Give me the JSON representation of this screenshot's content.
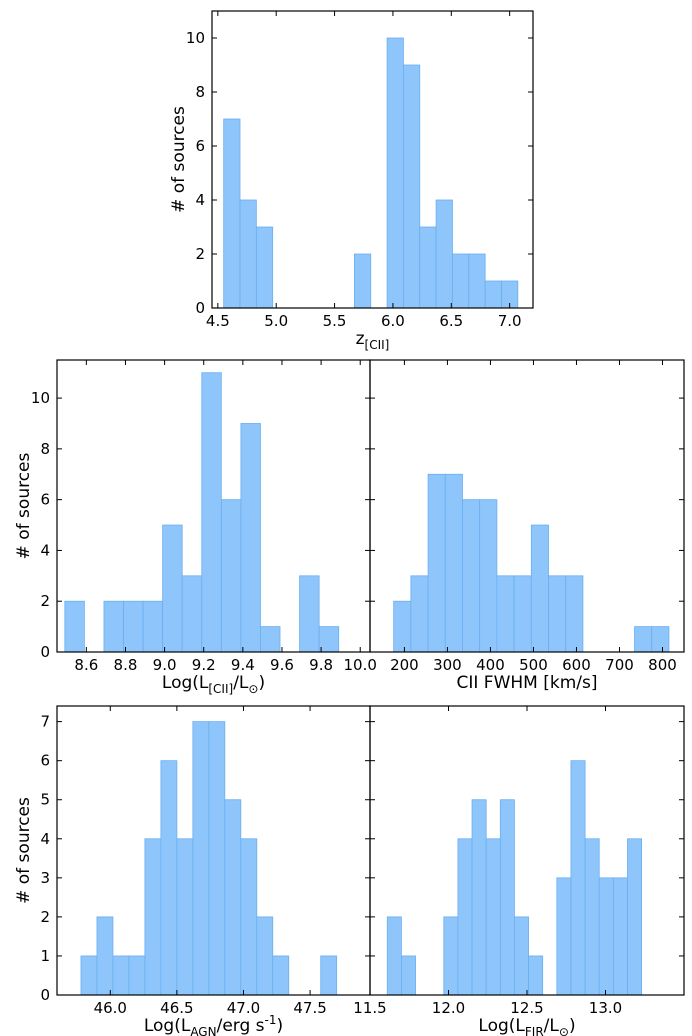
{
  "chart_data": [
    {
      "id": "redshift",
      "type": "bar",
      "title": "",
      "xlabel": "z_[CII]",
      "ylabel": "# of sources",
      "xlim": [
        4.45,
        7.2
      ],
      "ylim": [
        0,
        11
      ],
      "xticks": [
        4.5,
        5.0,
        5.5,
        6.0,
        6.5,
        7.0
      ],
      "xtick_labels": [
        "4.5",
        "5.0",
        "5.5",
        "6.0",
        "6.5",
        "7.0"
      ],
      "yticks": [
        0,
        2,
        4,
        6,
        8,
        10
      ],
      "ytick_labels": [
        "0",
        "2",
        "4",
        "6",
        "8",
        "10"
      ],
      "bin_edges": [
        4.55,
        4.69,
        4.83,
        4.97,
        5.11,
        5.25,
        5.39,
        5.53,
        5.67,
        5.81,
        5.95,
        6.09,
        6.23,
        6.37,
        6.51,
        6.65,
        6.79,
        6.93,
        7.07
      ],
      "counts": [
        7,
        4,
        3,
        0,
        0,
        0,
        0,
        0,
        2,
        0,
        10,
        9,
        3,
        4,
        2,
        2,
        1,
        1
      ],
      "bar_color": "#8EC6FB",
      "grid": false
    },
    {
      "id": "lcii",
      "type": "bar",
      "title": "",
      "xlabel": "Log(L_[CII]/L_⊙)",
      "ylabel": "# of sources",
      "xlim": [
        8.45,
        10.05
      ],
      "ylim": [
        0,
        11.5
      ],
      "xticks": [
        8.6,
        8.8,
        9.0,
        9.2,
        9.4,
        9.6,
        9.8,
        10.0
      ],
      "xtick_labels": [
        "8.6",
        "8.8",
        "9.0",
        "9.2",
        "9.4",
        "9.6",
        "9.8",
        "10.0"
      ],
      "yticks": [
        0,
        2,
        4,
        6,
        8,
        10
      ],
      "ytick_labels": [
        "0",
        "2",
        "4",
        "6",
        "8",
        "10"
      ],
      "bin_edges": [
        8.49,
        8.59,
        8.69,
        8.79,
        8.89,
        8.99,
        9.09,
        9.19,
        9.29,
        9.39,
        9.49,
        9.59,
        9.69,
        9.79,
        9.89
      ],
      "counts": [
        2,
        0,
        2,
        2,
        2,
        5,
        3,
        11,
        6,
        9,
        1,
        0,
        3,
        1
      ],
      "bar_color": "#8EC6FB",
      "grid": false
    },
    {
      "id": "fwhm",
      "type": "bar",
      "title": "",
      "xlabel": "CII FWHM [km/s]",
      "ylabel": "",
      "xlim": [
        120,
        850
      ],
      "ylim": [
        0,
        11.5
      ],
      "xticks": [
        200,
        300,
        400,
        500,
        600,
        700,
        800
      ],
      "xtick_labels": [
        "200",
        "300",
        "400",
        "500",
        "600",
        "700",
        "800"
      ],
      "yticks": [
        0,
        2,
        4,
        6,
        8,
        10
      ],
      "ytick_labels": [],
      "bin_edges": [
        175,
        215,
        255,
        295,
        335,
        375,
        415,
        455,
        495,
        535,
        575,
        615,
        655,
        695,
        735,
        775,
        815
      ],
      "counts": [
        2,
        3,
        7,
        7,
        6,
        6,
        3,
        3,
        5,
        3,
        3,
        0,
        0,
        0,
        1,
        1
      ],
      "bar_color": "#8EC6FB",
      "grid": false
    },
    {
      "id": "lagn",
      "type": "bar",
      "title": "",
      "xlabel": "Log(L_AGN/erg s^-1)",
      "ylabel": "# of sources",
      "xlim": [
        45.6,
        47.95
      ],
      "ylim": [
        0,
        7.4
      ],
      "xticks": [
        46.0,
        46.5,
        47.0,
        47.5
      ],
      "xtick_labels": [
        "46.0",
        "46.5",
        "47.0",
        "47.5"
      ],
      "yticks": [
        0,
        1,
        2,
        3,
        4,
        5,
        6,
        7
      ],
      "ytick_labels": [
        "0",
        "1",
        "2",
        "3",
        "4",
        "5",
        "6",
        "7"
      ],
      "bin_edges": [
        45.78,
        45.9,
        46.02,
        46.14,
        46.26,
        46.38,
        46.5,
        46.62,
        46.74,
        46.86,
        46.98,
        47.1,
        47.22,
        47.34,
        47.46,
        47.58,
        47.7,
        47.82
      ],
      "counts": [
        1,
        2,
        1,
        1,
        4,
        6,
        4,
        7,
        7,
        5,
        4,
        2,
        1,
        0,
        0,
        1,
        0
      ],
      "bar_color": "#8EC6FB",
      "grid": false
    },
    {
      "id": "lfir",
      "type": "bar",
      "title": "",
      "xlabel": "Log(L_FIR/L_⊙)",
      "ylabel": "",
      "xlim": [
        11.5,
        13.5
      ],
      "ylim": [
        0,
        7.4
      ],
      "xticks": [
        11.5,
        12.0,
        12.5,
        13.0
      ],
      "xtick_labels": [
        "11.5",
        "12.0",
        "12.5",
        "13.0"
      ],
      "yticks": [
        0,
        1,
        2,
        3,
        4,
        5,
        6,
        7
      ],
      "ytick_labels": [],
      "bin_edges": [
        11.61,
        11.7,
        11.79,
        11.88,
        11.97,
        12.06,
        12.15,
        12.24,
        12.33,
        12.42,
        12.51,
        12.6,
        12.69,
        12.78,
        12.87,
        12.96,
        13.05,
        13.14,
        13.23,
        13.32,
        13.41
      ],
      "counts": [
        2,
        1,
        0,
        0,
        2,
        4,
        5,
        4,
        5,
        2,
        1,
        0,
        3,
        6,
        4,
        3,
        3,
        4,
        0,
        0
      ],
      "bar_color": "#8EC6FB",
      "grid": false
    }
  ]
}
